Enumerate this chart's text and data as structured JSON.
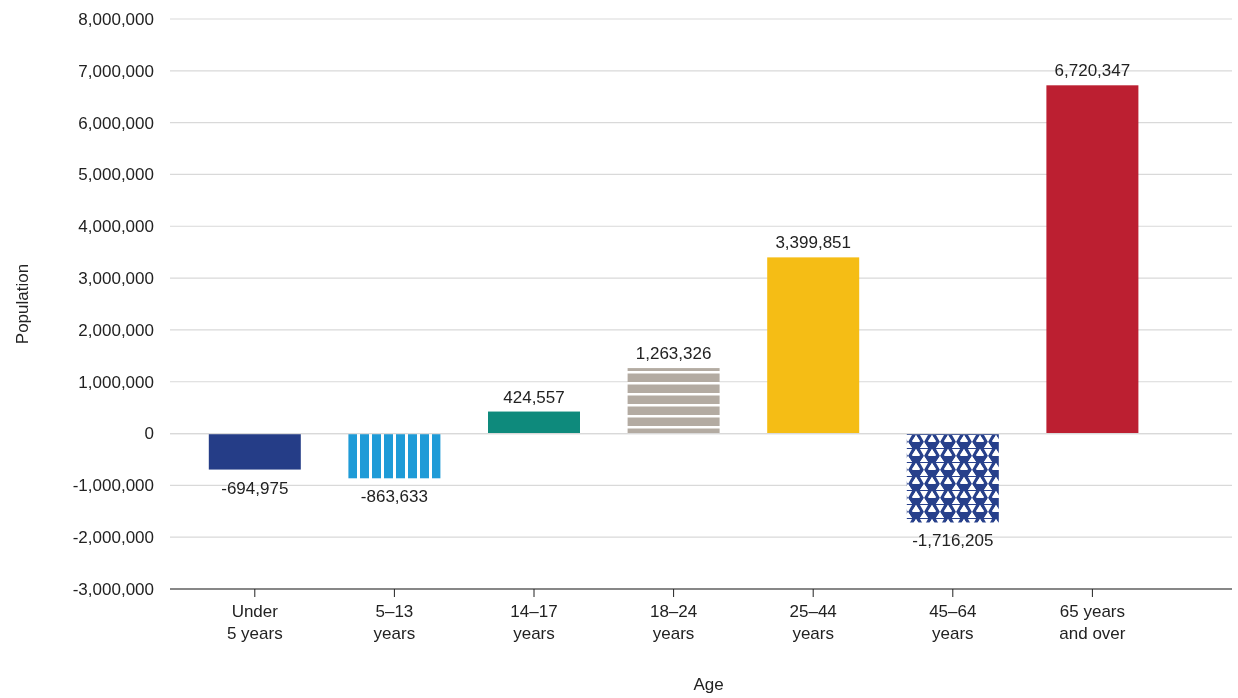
{
  "chart_data": {
    "type": "bar",
    "xlabel": "Age",
    "ylabel": "Population",
    "categories": [
      "Under\n5 years",
      "5–13\nyears",
      "14–17\nyears",
      "18–24\nyears",
      "25–44\nyears",
      "45–64\nyears",
      "65 years\nand over"
    ],
    "values": [
      -694975,
      -863633,
      424557,
      1263326,
      3399851,
      -1716205,
      6720347
    ],
    "colors": [
      "#253d87",
      "#1f9bd7",
      "#0e8a7c",
      "#b3aba2",
      "#f5bd15",
      "#27408b",
      "#bc1f31"
    ],
    "ylim": [
      -3000000,
      8000000
    ],
    "yticks": [
      {
        "value": -3000000,
        "label": "-3,000,000"
      },
      {
        "value": -2000000,
        "label": "-2,000,000"
      },
      {
        "value": -1000000,
        "label": "-1,000,000"
      },
      0,
      {
        "value": 1000000,
        "label": "1,000,000"
      },
      {
        "value": 2000000,
        "label": "2,000,000"
      },
      {
        "value": 3000000,
        "label": "3,000,000"
      },
      {
        "value": 4000000,
        "label": "4,000,000"
      },
      {
        "value": 5000000,
        "label": "5,000,000"
      },
      {
        "value": 6000000,
        "label": "6,000,000"
      },
      {
        "value": 7000000,
        "label": "7,000,000"
      },
      {
        "value": 8000000,
        "label": "8,000,000"
      }
    ],
    "value_labels": [
      "-694,975",
      "-863,633",
      "424,557",
      "1,263,326",
      "3,399,851",
      "-1,716,205",
      "6,720,347"
    ],
    "grid": "y"
  }
}
